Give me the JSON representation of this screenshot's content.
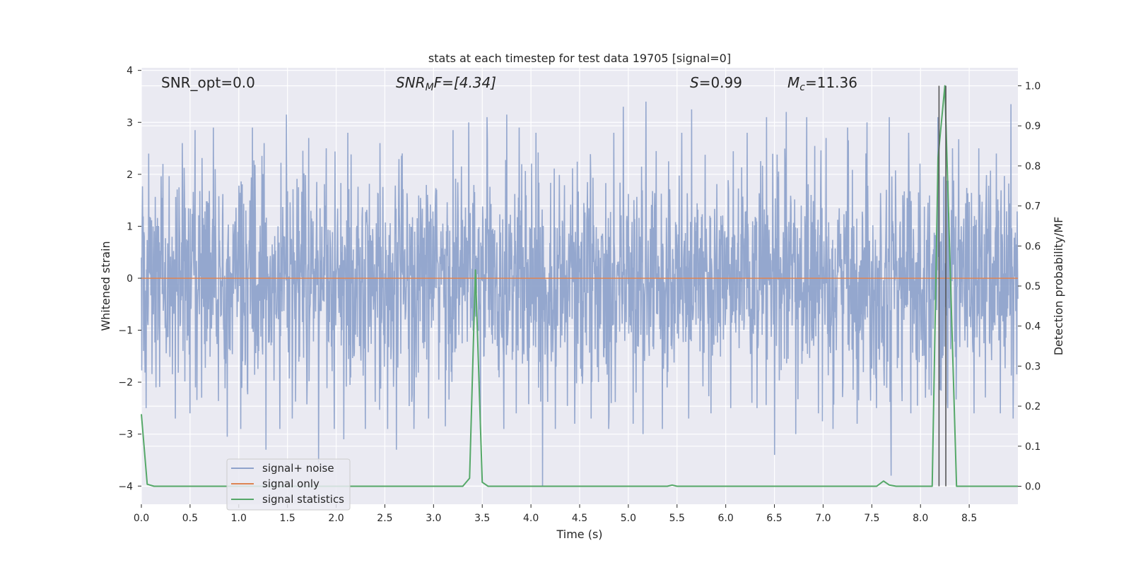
{
  "chart_data": {
    "type": "line",
    "title": "stats at each timestep for test data 19705 [signal=0]",
    "xlabel": "Time (s)",
    "ylabel_left": "Whitened strain",
    "ylabel_right": "Detection probability/MF",
    "xlim": [
      0.0,
      9.0
    ],
    "ylim_left": [
      -4.35,
      4.05
    ],
    "ylim_right": [
      -0.045,
      1.045
    ],
    "xticks": [
      "0.0",
      "0.5",
      "1.0",
      "1.5",
      "2.0",
      "2.5",
      "3.0",
      "3.5",
      "4.0",
      "4.5",
      "5.0",
      "5.5",
      "6.0",
      "6.5",
      "7.0",
      "7.5",
      "8.0",
      "8.5"
    ],
    "yticks_left": [
      "−4",
      "−3",
      "−2",
      "−1",
      "0",
      "1",
      "2",
      "3",
      "4"
    ],
    "yticks_right": [
      "0.0",
      "0.1",
      "0.2",
      "0.3",
      "0.4",
      "0.5",
      "0.6",
      "0.7",
      "0.8",
      "0.9",
      "1.0"
    ],
    "grid": true,
    "legend_position": "lower-left",
    "annotations": {
      "snr_opt": "SNR_opt=0.0",
      "snr_mf_base": "SNR",
      "snr_mf_sub": "M",
      "snr_mf_rest": "F=[4.34]",
      "s_var": "S",
      "s_value": "=0.99",
      "mc_var": "M",
      "mc_sub": "c",
      "mc_value": "=11.36"
    },
    "series": [
      {
        "name": "signal+ noise",
        "axis": "left",
        "color": "#8fa3cb",
        "note_kind": "dense_noise",
        "band_sigma": 1.4,
        "peaks_pos": [
          [
            0.05,
            2.05
          ],
          [
            0.22,
            2.2
          ],
          [
            0.42,
            2.6
          ],
          [
            0.55,
            2.85
          ],
          [
            0.74,
            2.9
          ],
          [
            0.88,
            2.6
          ],
          [
            1.02,
            2.3
          ],
          [
            1.14,
            2.9
          ],
          [
            1.26,
            2.6
          ],
          [
            1.49,
            3.15
          ],
          [
            1.72,
            2.7
          ],
          [
            1.9,
            2.5
          ],
          [
            2.12,
            2.8
          ],
          [
            2.3,
            2.9
          ],
          [
            2.45,
            2.6
          ],
          [
            2.62,
            2.85
          ],
          [
            2.8,
            3.0
          ],
          [
            2.95,
            2.8
          ],
          [
            3.2,
            2.85
          ],
          [
            3.36,
            3.0
          ],
          [
            3.55,
            3.1
          ],
          [
            3.75,
            3.15
          ],
          [
            3.88,
            2.9
          ],
          [
            4.05,
            2.8
          ],
          [
            4.25,
            2.7
          ],
          [
            4.45,
            2.9
          ],
          [
            4.62,
            3.0
          ],
          [
            4.85,
            2.8
          ],
          [
            4.95,
            3.3
          ],
          [
            5.18,
            3.4
          ],
          [
            5.35,
            2.9
          ],
          [
            5.55,
            2.8
          ],
          [
            5.65,
            3.25
          ],
          [
            5.85,
            3.3
          ],
          [
            6.05,
            2.9
          ],
          [
            6.22,
            2.8
          ],
          [
            6.42,
            3.1
          ],
          [
            6.62,
            3.2
          ],
          [
            6.83,
            3.1
          ],
          [
            7.03,
            2.7
          ],
          [
            7.25,
            2.9
          ],
          [
            7.45,
            3.0
          ],
          [
            7.68,
            3.1
          ],
          [
            7.88,
            2.8
          ],
          [
            8.05,
            2.7
          ],
          [
            8.18,
            3.1
          ],
          [
            8.33,
            2.5
          ],
          [
            8.6,
            2.5
          ],
          [
            8.78,
            2.4
          ],
          [
            8.93,
            3.35
          ]
        ],
        "peaks_neg": [
          [
            0.05,
            -2.5
          ],
          [
            0.15,
            -2.1
          ],
          [
            0.35,
            -2.7
          ],
          [
            0.5,
            -2.6
          ],
          [
            0.62,
            -2.3
          ],
          [
            0.88,
            -3.05
          ],
          [
            1.02,
            -2.9
          ],
          [
            1.28,
            -3.3
          ],
          [
            1.42,
            -2.9
          ],
          [
            1.55,
            -2.7
          ],
          [
            1.82,
            -3.55
          ],
          [
            1.98,
            -2.9
          ],
          [
            2.08,
            -3.1
          ],
          [
            2.3,
            -2.9
          ],
          [
            2.53,
            -2.9
          ],
          [
            2.62,
            -3.3
          ],
          [
            2.8,
            -2.9
          ],
          [
            2.95,
            -2.7
          ],
          [
            3.12,
            -2.85
          ],
          [
            3.48,
            -2.9
          ],
          [
            3.72,
            -2.9
          ],
          [
            3.85,
            -2.6
          ],
          [
            4.12,
            -4.0
          ],
          [
            4.25,
            -2.9
          ],
          [
            4.45,
            -2.8
          ],
          [
            4.62,
            -2.7
          ],
          [
            4.8,
            -2.9
          ],
          [
            5.05,
            -2.8
          ],
          [
            5.15,
            -3.0
          ],
          [
            5.35,
            -2.9
          ],
          [
            5.62,
            -2.7
          ],
          [
            5.85,
            -2.6
          ],
          [
            6.05,
            -2.5
          ],
          [
            6.32,
            -2.5
          ],
          [
            6.5,
            -3.4
          ],
          [
            6.72,
            -3.0
          ],
          [
            6.95,
            -2.6
          ],
          [
            7.1,
            -2.9
          ],
          [
            7.35,
            -2.8
          ],
          [
            7.55,
            -2.5
          ],
          [
            7.7,
            -3.8
          ],
          [
            7.9,
            -2.6
          ],
          [
            8.05,
            -2.3
          ],
          [
            8.28,
            -2.5
          ],
          [
            8.55,
            -2.6
          ],
          [
            8.82,
            -2.6
          ],
          [
            8.95,
            -2.7
          ]
        ]
      },
      {
        "name": "signal only",
        "axis": "left",
        "color": "#dd8452",
        "x": [
          0.0,
          9.0
        ],
        "y": [
          0.0,
          0.0
        ]
      },
      {
        "name": "signal statistics",
        "axis": "right",
        "color": "#55a868",
        "x": [
          0.0,
          0.06,
          0.13,
          0.2,
          3.3,
          3.37,
          3.43,
          3.5,
          3.56,
          3.63,
          5.4,
          5.45,
          5.5,
          7.55,
          7.62,
          7.68,
          7.75,
          8.12,
          8.18,
          8.25,
          8.31,
          8.37,
          8.43,
          9.0
        ],
        "y": [
          0.18,
          0.005,
          0.0,
          0.0,
          0.0,
          0.02,
          0.54,
          0.01,
          0.0,
          0.0,
          0.0,
          0.003,
          0.0,
          0.0,
          0.013,
          0.003,
          0.0,
          0.0,
          0.82,
          1.0,
          0.5,
          0.0,
          0.0,
          0.0
        ]
      }
    ],
    "vlines": [
      {
        "x": 8.19,
        "y0": 0.0,
        "y1": 1.0,
        "axis": "right",
        "color": "#555555"
      },
      {
        "x": 8.26,
        "y0": 0.0,
        "y1": 1.0,
        "axis": "right",
        "color": "#555555"
      }
    ]
  }
}
